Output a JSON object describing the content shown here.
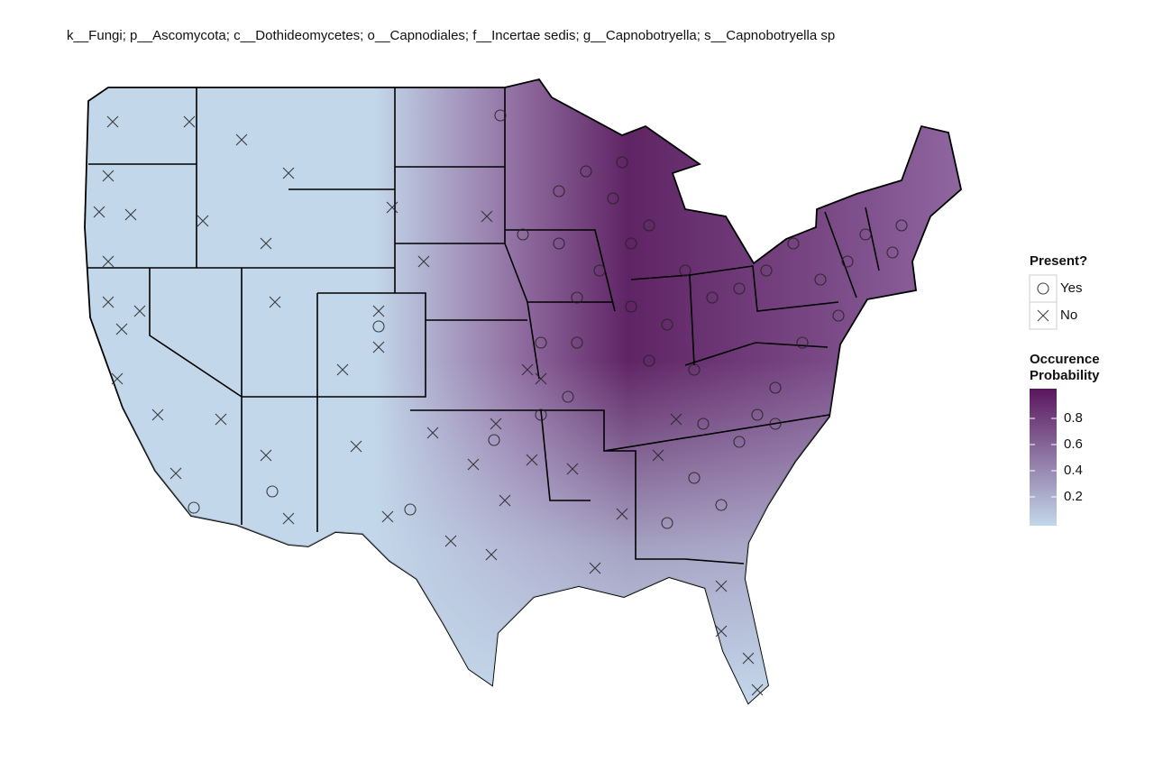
{
  "title": "k__Fungi; p__Ascomycota; c__Dothideomycetes; o__Capnodiales; f__Incertae sedis; g__Capnobotryella; s__Capnobotryella sp",
  "legend": {
    "shape_title": "Present?",
    "shape_items": [
      "Yes",
      "No"
    ],
    "color_title": [
      "Occurence",
      "Probability"
    ],
    "color_lim": [
      0,
      1
    ],
    "color_ticks": [
      0.2,
      0.4,
      0.6,
      0.8
    ],
    "colors": [
      "#c3d7ea",
      "#5a165d"
    ]
  }
}
